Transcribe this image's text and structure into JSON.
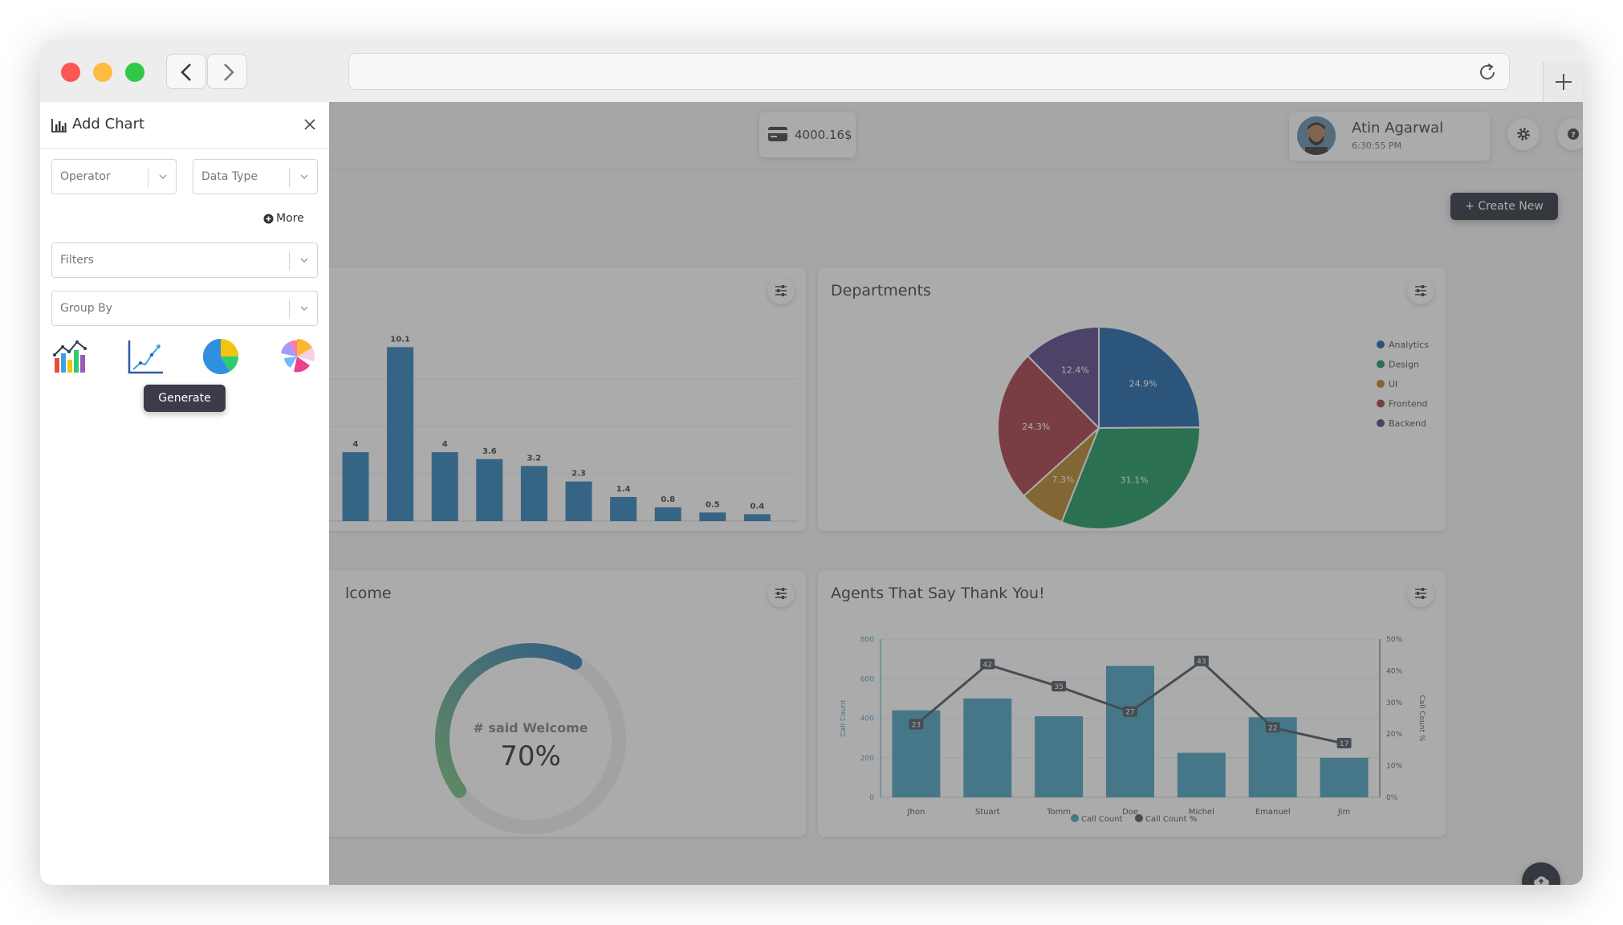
{
  "balance": {
    "amount": "4000.16$"
  },
  "user": {
    "name": "Atin Agarwal",
    "time": "6:30:55 PM"
  },
  "toolbar": {
    "create_label": "+ Create New"
  },
  "add_chart": {
    "title": "Add Chart",
    "operator_placeholder": "Operator",
    "data_type_placeholder": "Data Type",
    "more_label": "More",
    "filters_placeholder": "Filters",
    "group_by_placeholder": "Group By",
    "chart_types": [
      "bar-chart-icon",
      "line-chart-icon",
      "pie-chart-icon",
      "polar-chart-icon"
    ],
    "generate_label": "Generate"
  },
  "cards": {
    "departments_title": "Departments",
    "welcome_title": "lcome",
    "thank_you_title": "Agents That Say Thank You!"
  },
  "colors": {
    "bar": "#1f77b4",
    "pie": [
      "#0b5aa3",
      "#0a8f54",
      "#b07c1a",
      "#a32d3a",
      "#4b367f"
    ],
    "agents_bar": "#3e9bbd",
    "agents_line": "#3d4a57",
    "gauge_start": "#6fbf73",
    "gauge_end": "#1f6fb5"
  },
  "chart_data": [
    {
      "type": "bar",
      "title": "",
      "values": [
        4,
        10.1,
        4,
        3.6,
        3.2,
        2.3,
        1.4,
        0.8,
        0.5,
        0.4
      ],
      "labels": [
        "4",
        "10.1",
        "4",
        "3.6",
        "3.2",
        "2.3",
        "1.4",
        "0.8",
        "0.5",
        "0.4"
      ],
      "ylim": [
        0,
        11
      ]
    },
    {
      "type": "pie",
      "title": "Departments",
      "categories": [
        "Analytics",
        "Design",
        "UI",
        "Frontend",
        "Backend"
      ],
      "values": [
        24.9,
        31.1,
        7.3,
        24.3,
        12.4
      ],
      "labels": [
        "24.9%",
        "31.1%",
        "7.3%",
        "24.3%",
        "12.4%"
      ],
      "legend": "right"
    },
    {
      "type": "gauge",
      "title": "# said Welcome",
      "value": 70,
      "label": "70%"
    },
    {
      "type": "bar",
      "title": "Agents That Say Thank You!",
      "categories": [
        "Jhon",
        "Stuart",
        "Tomm",
        "Doe",
        "Michel",
        "Emanuel",
        "Jim"
      ],
      "series": [
        {
          "name": "Call Count",
          "type": "bar",
          "values": [
            440,
            500,
            410,
            665,
            225,
            405,
            200
          ]
        },
        {
          "name": "Call Count %",
          "type": "line",
          "values": [
            23,
            42,
            35,
            27,
            43,
            22,
            17
          ]
        }
      ],
      "ylabel": "Call Count",
      "y2label": "Call Count %",
      "ylim": [
        0,
        800
      ],
      "y2lim": [
        0,
        50
      ],
      "yticks": [
        "0",
        "200",
        "400",
        "600",
        "800"
      ],
      "y2ticks": [
        "0%",
        "10%",
        "20%",
        "30%",
        "40%",
        "50%"
      ],
      "legend": "bottom"
    }
  ]
}
